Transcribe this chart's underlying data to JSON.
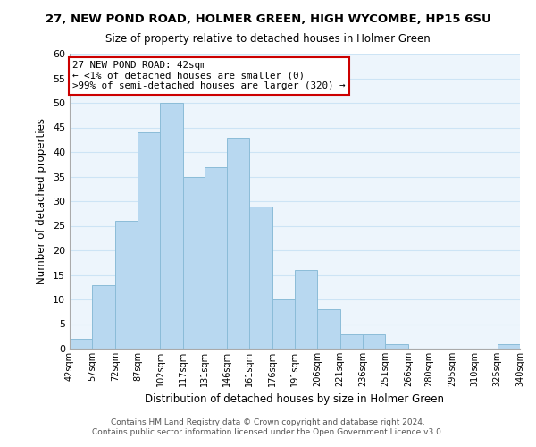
{
  "title": "27, NEW POND ROAD, HOLMER GREEN, HIGH WYCOMBE, HP15 6SU",
  "subtitle": "Size of property relative to detached houses in Holmer Green",
  "xlabel": "Distribution of detached houses by size in Holmer Green",
  "ylabel": "Number of detached properties",
  "bar_color": "#b8d8f0",
  "bar_edge_color": "#8bbcd8",
  "grid_color": "#cde4f5",
  "annotation_box_color": "#cc0000",
  "annotation_line1": "27 NEW POND ROAD: 42sqm",
  "annotation_line2": "← <1% of detached houses are smaller (0)",
  "annotation_line3": ">99% of semi-detached houses are larger (320) →",
  "bins": [
    42,
    57,
    72,
    87,
    102,
    117,
    131,
    146,
    161,
    176,
    191,
    206,
    221,
    236,
    251,
    266,
    280,
    295,
    310,
    325,
    340
  ],
  "counts": [
    2,
    13,
    26,
    44,
    50,
    35,
    37,
    43,
    29,
    10,
    16,
    8,
    3,
    3,
    1,
    0,
    0,
    0,
    0,
    1
  ],
  "tick_labels": [
    "42sqm",
    "57sqm",
    "72sqm",
    "87sqm",
    "102sqm",
    "117sqm",
    "131sqm",
    "146sqm",
    "161sqm",
    "176sqm",
    "191sqm",
    "206sqm",
    "221sqm",
    "236sqm",
    "251sqm",
    "266sqm",
    "280sqm",
    "295sqm",
    "310sqm",
    "325sqm",
    "340sqm"
  ],
  "ylim": [
    0,
    60
  ],
  "yticks": [
    0,
    5,
    10,
    15,
    20,
    25,
    30,
    35,
    40,
    45,
    50,
    55,
    60
  ],
  "footer1": "Contains HM Land Registry data © Crown copyright and database right 2024.",
  "footer2": "Contains public sector information licensed under the Open Government Licence v3.0.",
  "background_color": "#edf5fc",
  "figure_background": "#ffffff"
}
